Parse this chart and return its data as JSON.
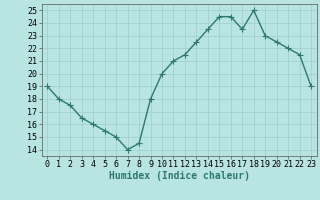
{
  "x": [
    0,
    1,
    2,
    3,
    4,
    5,
    6,
    7,
    8,
    9,
    10,
    11,
    12,
    13,
    14,
    15,
    16,
    17,
    18,
    19,
    20,
    21,
    22,
    23
  ],
  "y": [
    19,
    18,
    17.5,
    16.5,
    16,
    15.5,
    15,
    14,
    14.5,
    18,
    20,
    21,
    21.5,
    22.5,
    23.5,
    24.5,
    24.5,
    23.5,
    25,
    23,
    22.5,
    22,
    21.5,
    19
  ],
  "line_color": "#2d7a6a",
  "bg_color": "#b8e4e2",
  "grid_color": "#9ecfcd",
  "xlabel": "Humidex (Indice chaleur)",
  "xlim": [
    -0.5,
    23.5
  ],
  "ylim": [
    13.5,
    25.5
  ],
  "yticks": [
    14,
    15,
    16,
    17,
    18,
    19,
    20,
    21,
    22,
    23,
    24,
    25
  ],
  "xticks": [
    0,
    1,
    2,
    3,
    4,
    5,
    6,
    7,
    8,
    9,
    10,
    11,
    12,
    13,
    14,
    15,
    16,
    17,
    18,
    19,
    20,
    21,
    22,
    23
  ],
  "marker": "+",
  "linewidth": 1.0,
  "markersize": 4,
  "tick_fontsize": 6.0,
  "xlabel_fontsize": 7.0
}
